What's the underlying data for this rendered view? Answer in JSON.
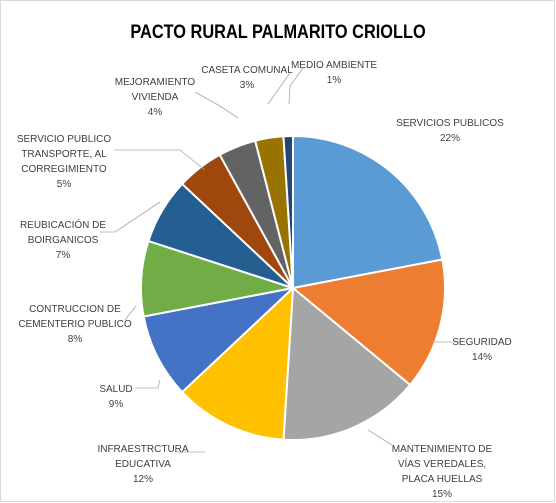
{
  "chart_data": {
    "type": "pie",
    "title": "PACTO RURAL PALMARITO CRIOLLO",
    "start_angle_deg": 0,
    "direction": "clockwise",
    "slices": [
      {
        "label": [
          "SERVICIOS PUBLICOS"
        ],
        "pct_label": "22%",
        "value": 22,
        "color": "#5b9bd5"
      },
      {
        "label": [
          "SEGURIDAD"
        ],
        "pct_label": "14%",
        "value": 14,
        "color": "#ed7d31"
      },
      {
        "label": [
          "MANTENIMIENTO DE",
          "VÍAS VEREDALES,",
          "PLACA HUELLAS"
        ],
        "pct_label": "15%",
        "value": 15,
        "color": "#a5a5a5"
      },
      {
        "label": [
          "INFRAESTRCTURA",
          "EDUCATIVA"
        ],
        "pct_label": "12%",
        "value": 12,
        "color": "#ffc000"
      },
      {
        "label": [
          "SALUD"
        ],
        "pct_label": "9%",
        "value": 9,
        "color": "#4472c4"
      },
      {
        "label": [
          "CONTRUCCION DE",
          "CEMENTERIO PUBLICO"
        ],
        "pct_label": "8%",
        "value": 8,
        "color": "#70ad47"
      },
      {
        "label": [
          "REUBICACIÓN DE",
          "BOIRGANICOS"
        ],
        "pct_label": "7%",
        "value": 7,
        "color": "#255e91"
      },
      {
        "label": [
          "SERVICIO PUBLICO",
          "TRANSPORTE,  AL",
          "CORREGIMIENTO"
        ],
        "pct_label": "5%",
        "value": 5,
        "color": "#9e480e"
      },
      {
        "label": [
          "MEJORAMIENTO",
          "VIVIENDA"
        ],
        "pct_label": "4%",
        "value": 4,
        "color": "#636363"
      },
      {
        "label": [
          "CASETA COMUNAL"
        ],
        "pct_label": "3%",
        "value": 3,
        "color": "#997300"
      },
      {
        "label": [
          "MEDIO AMBIENTE"
        ],
        "pct_label": "1%",
        "value": 1,
        "color": "#264478"
      }
    ],
    "legend": "none"
  }
}
